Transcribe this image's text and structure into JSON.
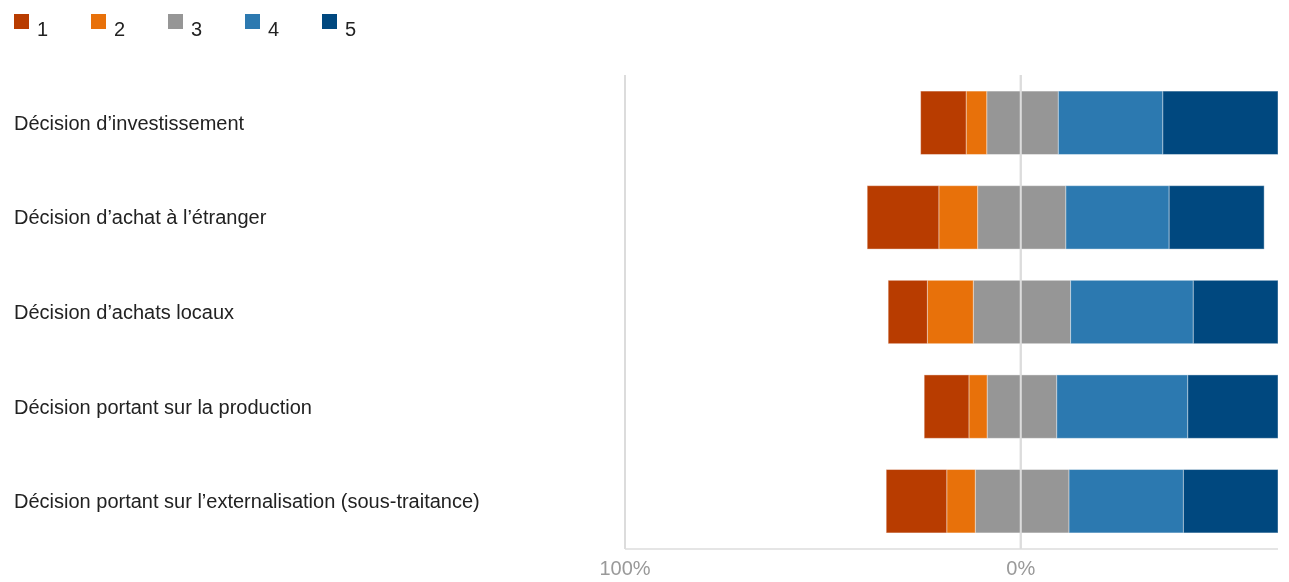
{
  "chart_data": {
    "type": "bar",
    "orientation": "horizontal",
    "stacked": true,
    "categories": [
      "Décision d’investissement",
      "Décision d’achat à l’étranger",
      "Décision d’achats locaux",
      "Décision portant sur la production",
      "Décision portant sur l’externalisation (sous-traitance)"
    ],
    "series": [
      {
        "name": "3",
        "color": "#969696",
        "values": [
          -8.6,
          -10.9,
          -12.0,
          -8.5,
          -11.5
        ]
      },
      {
        "color": "#969696",
        "values": [
          9.5,
          11.4,
          12.6,
          9.1,
          12.2
        ]
      },
      {
        "name": "2",
        "color": "#e8710a",
        "values": [
          -5.2,
          -9.8,
          -11.6,
          -4.6,
          -7.2
        ]
      },
      {
        "name": "4",
        "color": "#2c79b0",
        "values": [
          26.4,
          26.1,
          31.0,
          33.1,
          28.9
        ]
      },
      {
        "name": "1",
        "color": "#b83c00",
        "values": [
          -11.5,
          -18.1,
          -9.9,
          -11.3,
          -15.3
        ]
      },
      {
        "name": "5",
        "color": "#00487f",
        "values": [
          29.1,
          24.0,
          21.4,
          22.8,
          23.9
        ]
      }
    ],
    "xlim": [
      -100,
      65
    ],
    "xticks": [
      {
        "value": -100,
        "label": "100%"
      },
      {
        "value": 0,
        "label": "0%"
      }
    ],
    "grid": "x",
    "legend": "top left"
  }
}
